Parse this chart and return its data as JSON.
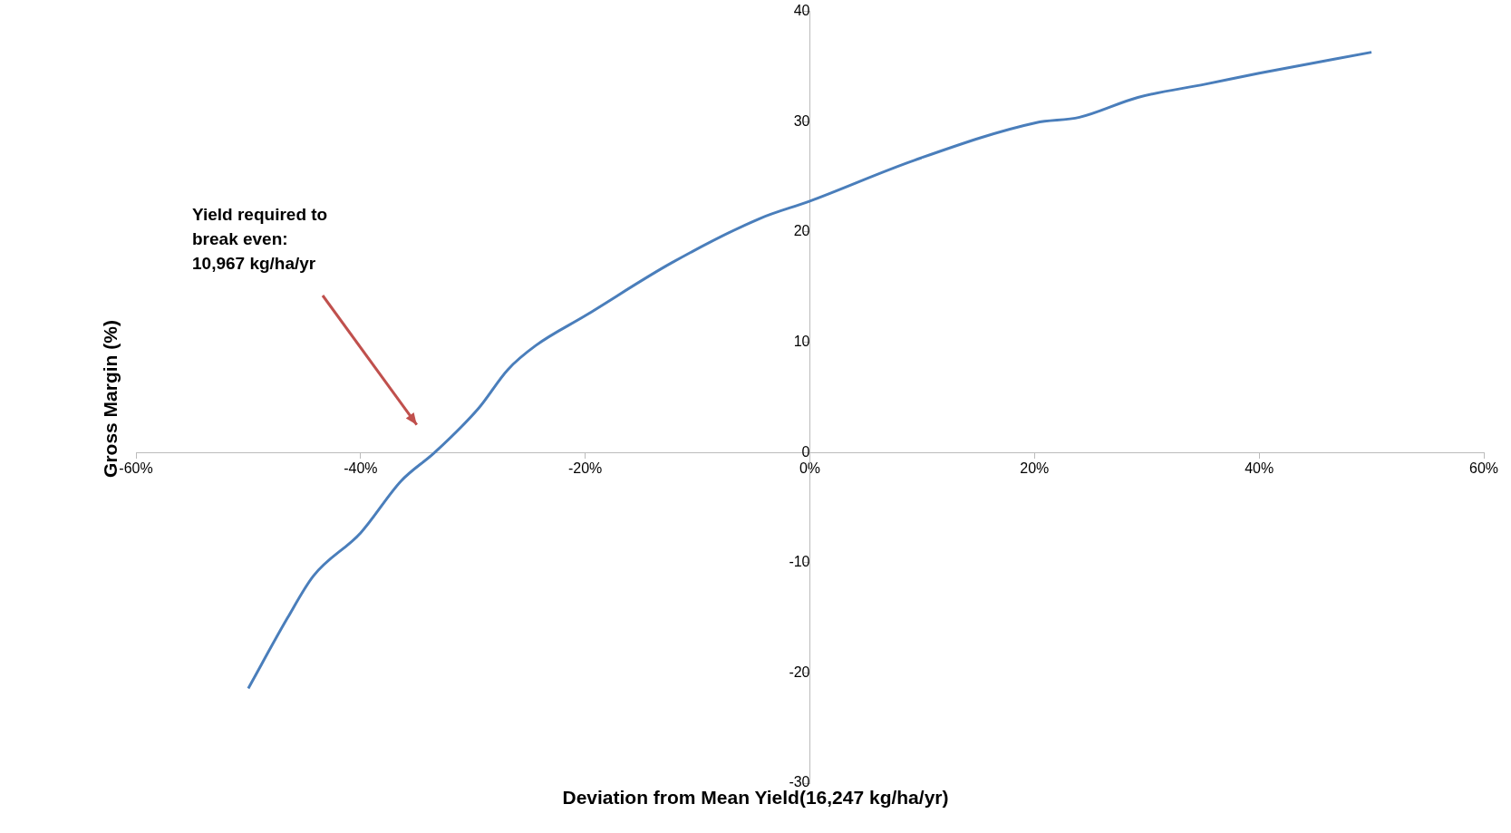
{
  "chart_data": {
    "type": "line",
    "xlabel": "Deviation from Mean Yield(16,247 kg/ha/yr)",
    "ylabel": "Gross Margin (%)",
    "annotations": [
      "Yield required to\nbreak even:\n10,967 kg/ha/yr"
    ],
    "xlim": [
      -60,
      60
    ],
    "xticks": [
      {
        "value": -60,
        "label": "-60%"
      },
      {
        "value": -40,
        "label": "-40%"
      },
      {
        "value": -20,
        "label": "-20%"
      },
      {
        "value": 0,
        "label": "0%"
      },
      {
        "value": 20,
        "label": "20%"
      },
      {
        "value": 40,
        "label": "40%"
      },
      {
        "value": 60,
        "label": "60%"
      }
    ],
    "ylim": [
      -30,
      40
    ],
    "yticks": [
      -30,
      -20,
      -10,
      0,
      10,
      20,
      30,
      40
    ],
    "grid": false,
    "legend": false,
    "series": [
      {
        "color": "#4a7ebb",
        "x": [
          -50,
          -46.5,
          -44.2,
          -40,
          -36.4,
          -33.4,
          -29.5,
          -26.9,
          -24.4,
          -20,
          -12.3,
          -4.5,
          0,
          9.3,
          20.1,
          24,
          29.2,
          35.2,
          40,
          50
        ],
        "values": [
          -21.4,
          -15,
          -11.2,
          -7.3,
          -2.6,
          0,
          4,
          7.5,
          9.7,
          12.4,
          17.2,
          21.2,
          22.8,
          26.5,
          29.9,
          30.4,
          32.2,
          33.4,
          34.4,
          36.3
        ]
      }
    ]
  }
}
